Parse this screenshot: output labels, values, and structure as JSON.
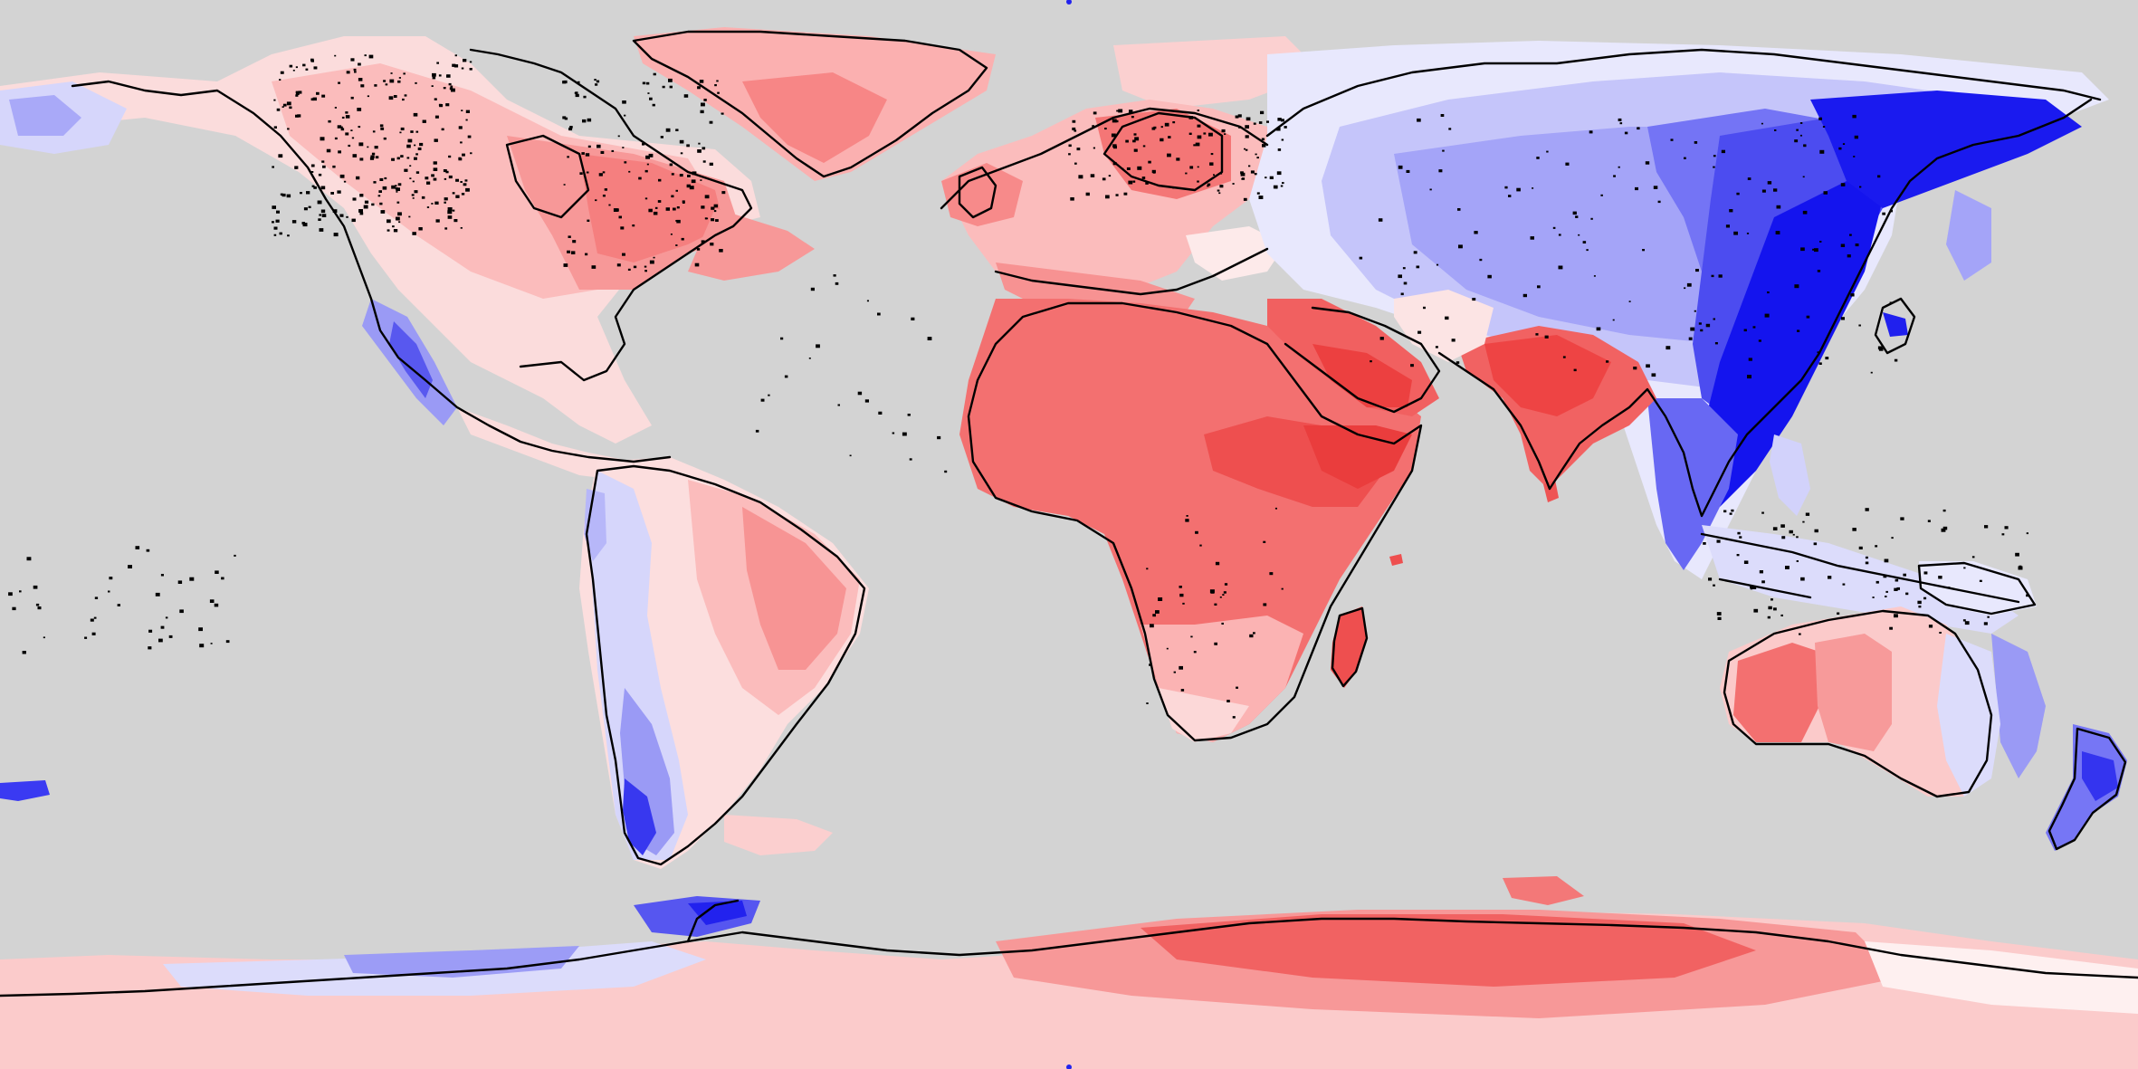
{
  "map": {
    "type": "global-anomaly-map",
    "projection": "equirectangular",
    "extent": {
      "lon": [
        -180,
        180
      ],
      "lat": [
        -90,
        90
      ]
    },
    "ocean_color": "#d3d3d3",
    "coastline_color": "#000000",
    "colormap": {
      "type": "diverging",
      "negative": [
        "#0b0bf0",
        "#3a3af2",
        "#7171f5",
        "#a9a9f8",
        "#d6d6fb",
        "#eeeeff"
      ],
      "neutral": "#ffffff",
      "positive": [
        "#ffe8e8",
        "#ffcdcd",
        "#fba9a9",
        "#f78a8a",
        "#f36a6a",
        "#ee4545"
      ]
    },
    "legend": null,
    "title": ""
  }
}
